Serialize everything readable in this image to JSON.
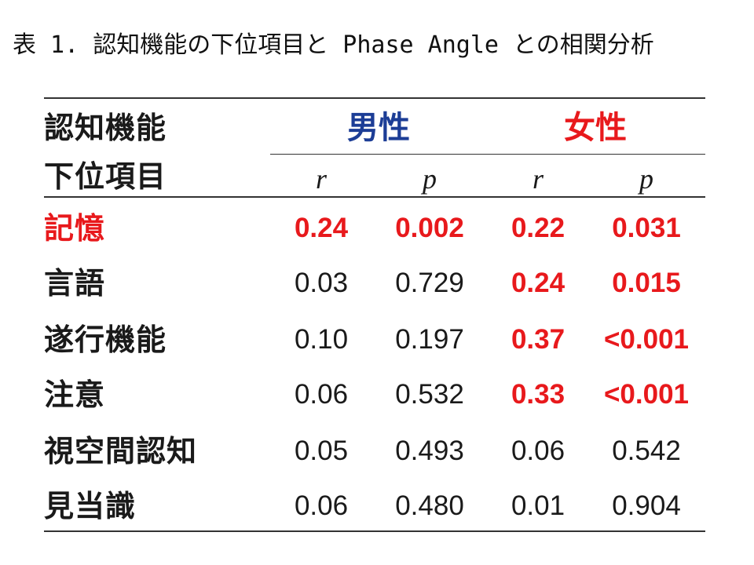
{
  "caption": "表 1. 認知機能の下位項目と Phase Angle との相関分析",
  "header": {
    "label_line1": "認知機能",
    "label_line2": "下位項目",
    "male": "男性",
    "female": "女性",
    "stat_r": "r",
    "stat_p": "p"
  },
  "colors": {
    "male": "#1c3d96",
    "female": "#e8191c",
    "significant": "#e8191c"
  },
  "rows": [
    {
      "label": "記憶",
      "label_significant": true,
      "male_r": "0.24",
      "male_p": "0.002",
      "female_r": "0.22",
      "female_p": "0.031",
      "male_sig": true,
      "female_sig": true
    },
    {
      "label": "言語",
      "label_significant": false,
      "male_r": "0.03",
      "male_p": "0.729",
      "female_r": "0.24",
      "female_p": "0.015",
      "male_sig": false,
      "female_sig": true
    },
    {
      "label": "遂行機能",
      "label_significant": false,
      "male_r": "0.10",
      "male_p": "0.197",
      "female_r": "0.37",
      "female_p": "<0.001",
      "male_sig": false,
      "female_sig": true
    },
    {
      "label": "注意",
      "label_significant": false,
      "male_r": "0.06",
      "male_p": "0.532",
      "female_r": "0.33",
      "female_p": "<0.001",
      "male_sig": false,
      "female_sig": true
    },
    {
      "label": "視空間認知",
      "label_significant": false,
      "male_r": "0.05",
      "male_p": "0.493",
      "female_r": "0.06",
      "female_p": "0.542",
      "male_sig": false,
      "female_sig": false
    },
    {
      "label": "見当識",
      "label_significant": false,
      "male_r": "0.06",
      "male_p": "0.480",
      "female_r": "0.01",
      "female_p": "0.904",
      "male_sig": false,
      "female_sig": false
    }
  ]
}
